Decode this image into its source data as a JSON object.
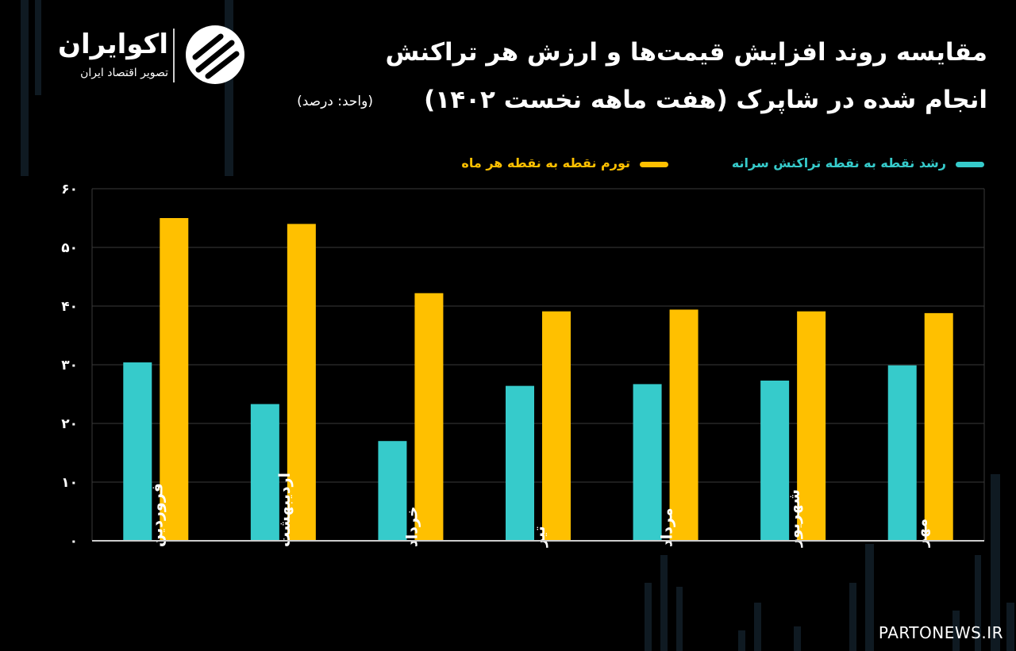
{
  "title": {
    "line1": "مقایسه روند افزایش قیمت‌ها و ارزش هر تراکنش",
    "line2": "انجام شده در شاپرک (هفت ماهه نخست ۱۴۰۲)",
    "unit": "(واحد: درصد)"
  },
  "logo": {
    "name": "اکوایران",
    "tagline": "تصویر اقتصاد ایران"
  },
  "watermark": "PARTONEWS.IR",
  "colors": {
    "background": "#000000",
    "growth": "#36cbcb",
    "inflation": "#ffc000",
    "grid": "#3a3a3a",
    "axis": "#cccccc"
  },
  "chart_data": {
    "type": "bar",
    "categories": [
      "فروردین",
      "اردیبهشت",
      "خرداد",
      "تیر",
      "مرداد",
      "شهریور",
      "مهر"
    ],
    "series": [
      {
        "name": "رشد نقطه به نقطه تراکنش سرانه",
        "color": "#36cbcb",
        "values": [
          30.4,
          23.3,
          17.0,
          26.4,
          26.7,
          27.3,
          29.9
        ]
      },
      {
        "name": "تورم نقطه به نقطه هر ماه",
        "color": "#ffc000",
        "values": [
          55.0,
          54.0,
          42.2,
          39.1,
          39.4,
          39.1,
          38.8
        ]
      }
    ],
    "y_ticks": [
      "۰",
      "۱۰",
      "۲۰",
      "۳۰",
      "۴۰",
      "۵۰",
      "۶۰"
    ],
    "ylim": [
      0,
      60
    ],
    "grid": true,
    "legend_position": "top-right"
  }
}
